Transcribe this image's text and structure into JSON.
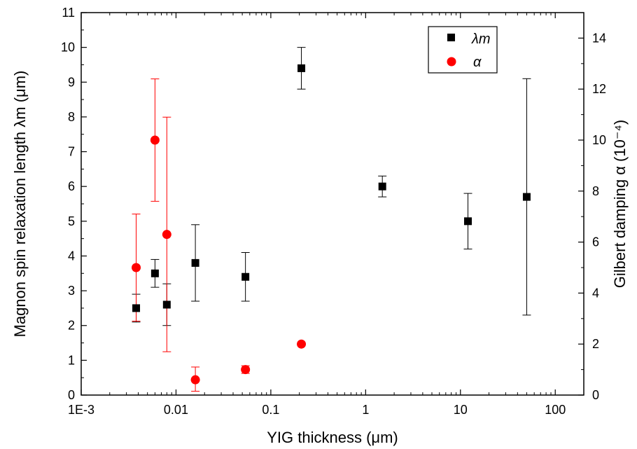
{
  "chart_data": {
    "type": "scatter",
    "x_axis": {
      "label": "YIG thickness (μm)",
      "scale": "log",
      "range": [
        0.001,
        200
      ],
      "ticks": [
        0.001,
        0.01,
        0.1,
        1,
        10,
        100
      ],
      "tick_labels": [
        "1E-3",
        "0.01",
        "0.1",
        "1",
        "10",
        "100"
      ]
    },
    "y_left_axis": {
      "label": "Magnon spin relaxation length λm (μm)",
      "range": [
        0,
        11
      ],
      "ticks": [
        0,
        1,
        2,
        3,
        4,
        5,
        6,
        7,
        8,
        9,
        10,
        11
      ],
      "tick_labels": [
        "0",
        "1",
        "2",
        "3",
        "4",
        "5",
        "6",
        "7",
        "8",
        "9",
        "10",
        "11"
      ]
    },
    "y_right_axis": {
      "label": "Gilbert damping α (10⁻⁴)",
      "range": [
        0,
        15
      ],
      "ticks": [
        0,
        2,
        4,
        6,
        8,
        10,
        12,
        14
      ],
      "tick_labels": [
        "0",
        "2",
        "4",
        "6",
        "8",
        "10",
        "12",
        "14"
      ]
    },
    "legend": {
      "placement": "top-right",
      "entries": [
        {
          "label": "λm",
          "marker": "square",
          "color": "#000000"
        },
        {
          "label": "α",
          "marker": "circle",
          "color": "#ff0000"
        }
      ]
    },
    "series": [
      {
        "name": "λm",
        "axis": "left",
        "marker": "square",
        "color": "#000000",
        "points": [
          {
            "x": 0.0038,
            "y": 2.5,
            "err_low": 2.1,
            "err_high": 2.9
          },
          {
            "x": 0.006,
            "y": 3.5,
            "err_low": 3.1,
            "err_high": 3.9
          },
          {
            "x": 0.008,
            "y": 2.6,
            "err_low": 2.0,
            "err_high": 3.2
          },
          {
            "x": 0.016,
            "y": 3.8,
            "err_low": 2.7,
            "err_high": 4.9
          },
          {
            "x": 0.054,
            "y": 3.4,
            "err_low": 2.7,
            "err_high": 4.1
          },
          {
            "x": 0.21,
            "y": 9.4,
            "err_low": 8.8,
            "err_high": 10.0
          },
          {
            "x": 1.5,
            "y": 6.0,
            "err_low": 5.7,
            "err_high": 6.3
          },
          {
            "x": 12,
            "y": 5.0,
            "err_low": 4.2,
            "err_high": 5.8
          },
          {
            "x": 50,
            "y": 5.7,
            "err_low": 2.3,
            "err_high": 9.1
          }
        ]
      },
      {
        "name": "α",
        "axis": "right",
        "marker": "circle",
        "color": "#ff0000",
        "points": [
          {
            "x": 0.0038,
            "y": 5.0,
            "err_low": 2.9,
            "err_high": 7.1
          },
          {
            "x": 0.006,
            "y": 10.0,
            "err_low": 7.6,
            "err_high": 12.4
          },
          {
            "x": 0.008,
            "y": 6.3,
            "err_low": 1.7,
            "err_high": 10.9
          },
          {
            "x": 0.016,
            "y": 0.6,
            "err_low": 0.15,
            "err_high": 1.1
          },
          {
            "x": 0.054,
            "y": 1.0,
            "err_low": 0.85,
            "err_high": 1.15
          },
          {
            "x": 0.21,
            "y": 2.0,
            "err_low": 2.0,
            "err_high": 2.0
          }
        ]
      }
    ]
  }
}
